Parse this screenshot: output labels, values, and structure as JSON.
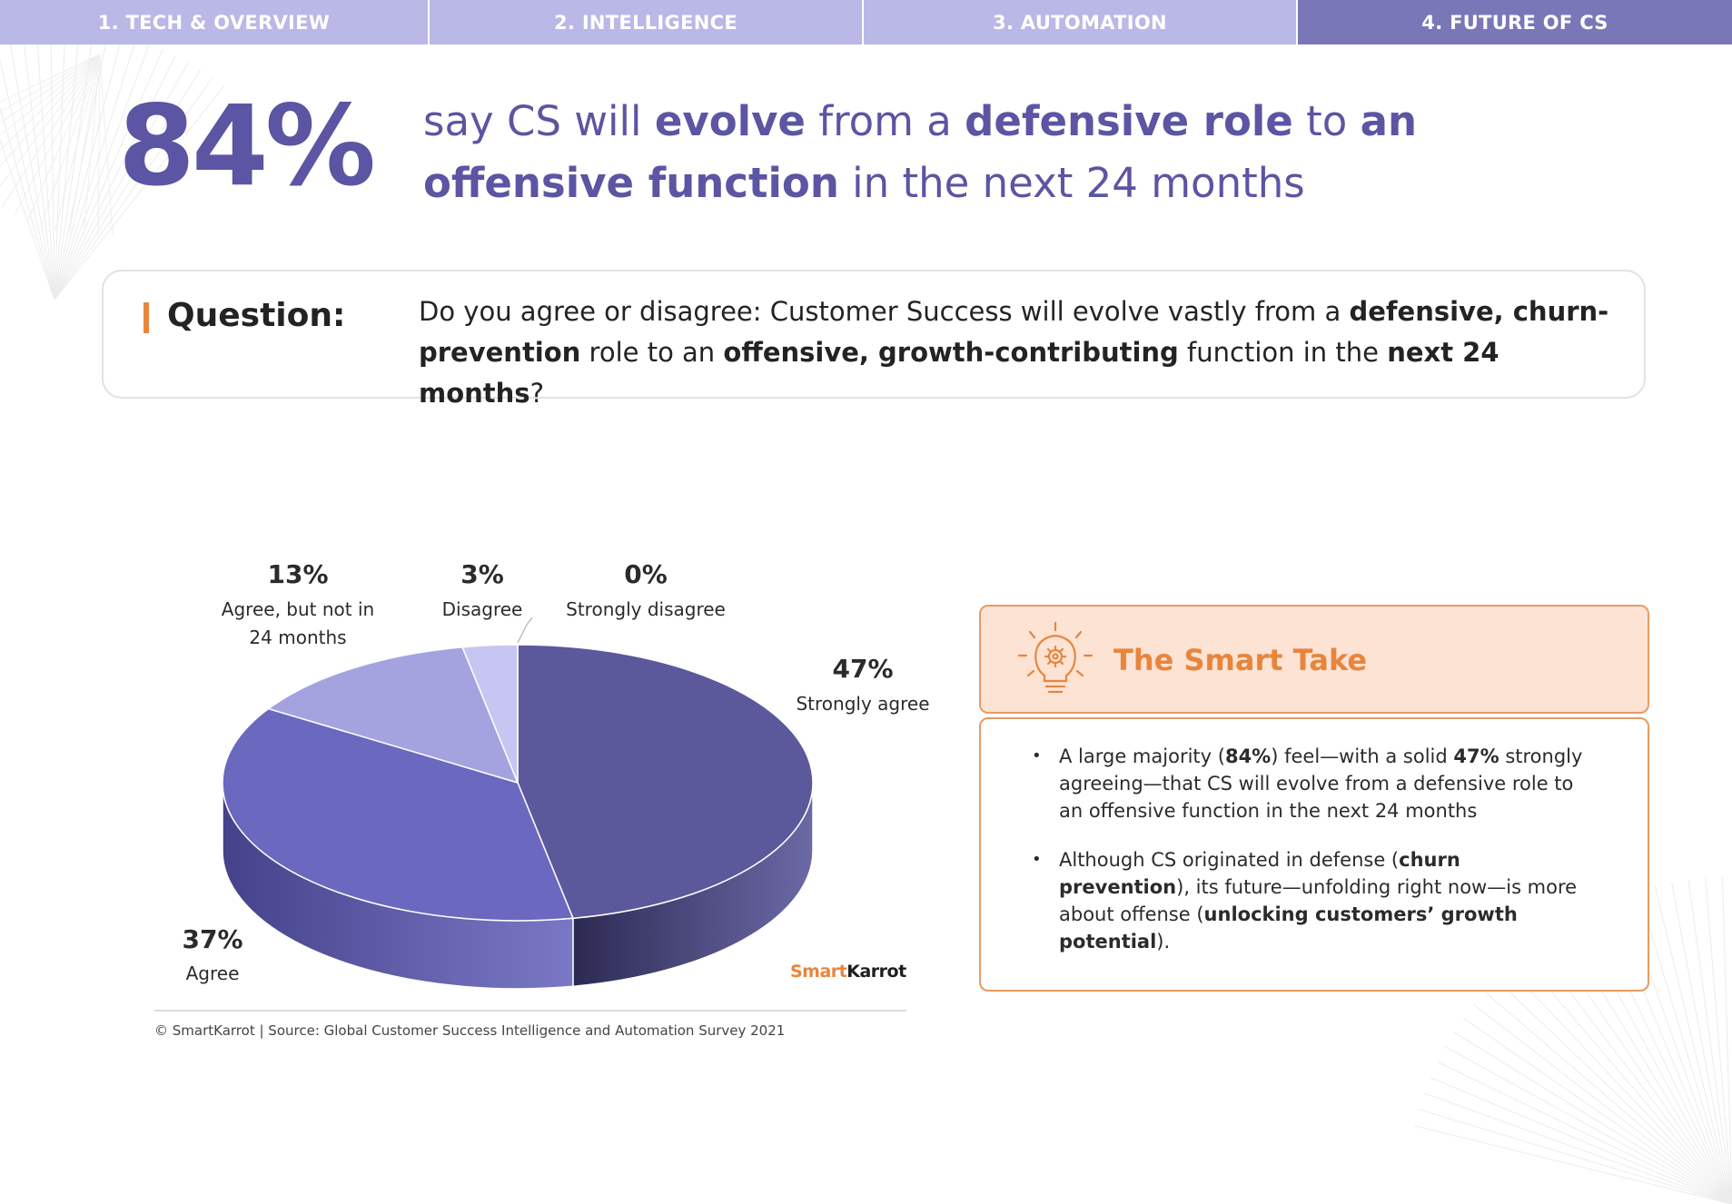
{
  "tabs": [
    {
      "label": "1. TECH & OVERVIEW",
      "active": false
    },
    {
      "label": "2. INTELLIGENCE",
      "active": false
    },
    {
      "label": "3. AUTOMATION",
      "active": false
    },
    {
      "label": "4. FUTURE OF CS",
      "active": true
    }
  ],
  "headline": {
    "big_number": "84%",
    "segments": [
      {
        "text": "say CS will ",
        "bold": false
      },
      {
        "text": "evolve",
        "bold": true
      },
      {
        "text": " from a ",
        "bold": false
      },
      {
        "text": "defensive role",
        "bold": true
      },
      {
        "text": " to ",
        "bold": false
      },
      {
        "text": "an offensive function",
        "bold": true
      },
      {
        "text": " in the next 24 months",
        "bold": false
      }
    ]
  },
  "question": {
    "label": "Question:",
    "segments": [
      {
        "text": "Do you agree or disagree: Customer Success will evolve vastly from a ",
        "bold": false
      },
      {
        "text": "defensive, churn-prevention",
        "bold": true
      },
      {
        "text": " role to an ",
        "bold": false
      },
      {
        "text": "offensive, growth-contributing",
        "bold": true
      },
      {
        "text": " function in the ",
        "bold": false
      },
      {
        "text": "next 24 months",
        "bold": true
      },
      {
        "text": "?",
        "bold": false
      }
    ]
  },
  "chart_data": {
    "type": "pie",
    "style": "3d",
    "slices": [
      {
        "label": "Strongly agree",
        "value": 47,
        "value_label": "47%",
        "color": "#5b589c",
        "side_color": "#2c2a52"
      },
      {
        "label": "Agree",
        "value": 37,
        "value_label": "37%",
        "color": "#6b68bf",
        "side_color": "#45428a"
      },
      {
        "label": "Agree, but not in 24 months",
        "value": 13,
        "value_label": "13%",
        "color": "#a4a3e0",
        "side_color": "#7a78bd"
      },
      {
        "label": "Disagree",
        "value": 3,
        "value_label": "3%",
        "color": "#c7c6f2",
        "side_color": "#a09fd6"
      },
      {
        "label": "Strongly disagree",
        "value": 0,
        "value_label": "0%",
        "color": "#dcdcf5",
        "side_color": "#b8b8e0"
      }
    ]
  },
  "brand": {
    "part1": "Smart",
    "part2": "Karrot"
  },
  "footnote": "© SmartKarrot | Source: Global Customer Success Intelligence and Automation Survey 2021",
  "smart_take": {
    "title": "The Smart Take",
    "icon": "lightbulb-gear-icon",
    "bullets": [
      [
        {
          "text": "A large majority (",
          "bold": false
        },
        {
          "text": "84%",
          "bold": true
        },
        {
          "text": ") feel—with a solid ",
          "bold": false
        },
        {
          "text": "47%",
          "bold": true
        },
        {
          "text": " strongly agreeing—that CS will evolve from a defensive role to an offensive function in the next 24 months",
          "bold": false
        }
      ],
      [
        {
          "text": "Although CS originated in defense (",
          "bold": false
        },
        {
          "text": "churn prevention",
          "bold": true
        },
        {
          "text": "), its future—unfolding right now—is more about offense (",
          "bold": false
        },
        {
          "text": "unlocking customers’ growth potential",
          "bold": true
        },
        {
          "text": ").",
          "bold": false
        }
      ]
    ]
  },
  "colors": {
    "tab_light": "#b9b8e6",
    "tab_active": "#7a77b8",
    "headline": "#5b55a3",
    "accent_orange": "#e8853c",
    "take_header_bg": "#fde3d4"
  }
}
